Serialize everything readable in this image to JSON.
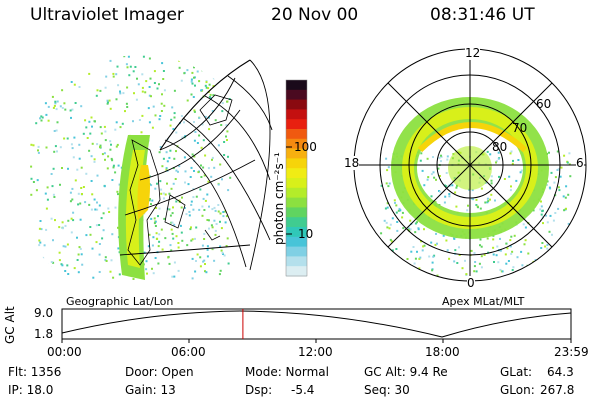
{
  "header": {
    "instrument": "Ultraviolet Imager",
    "date": "20 Nov 00",
    "time": "08:31:46 UT"
  },
  "colorbar": {
    "label": "photon cm⁻²s⁻¹",
    "tick_labels": [
      "100",
      "10"
    ],
    "colors": [
      "#1a0a1a",
      "#4a0a20",
      "#8a0a10",
      "#c41010",
      "#e82010",
      "#f05a10",
      "#f58a10",
      "#f7b010",
      "#f6d40a",
      "#f0ec14",
      "#d8f01a",
      "#b4ec2a",
      "#8ce040",
      "#60d460",
      "#40cc90",
      "#30c8b8",
      "#48c4d8",
      "#80d0e4",
      "#b4e0ec",
      "#dceef2"
    ]
  },
  "geographic_panel": {
    "label": "Geographic Lat/Lon"
  },
  "polar_panel": {
    "label": "Apex MLat/MLT",
    "mlt_labels": {
      "top": "12",
      "left": "18",
      "right": "6",
      "bottom": "0"
    },
    "lat_labels": [
      "60",
      "70",
      "80"
    ]
  },
  "altitude_plot": {
    "ylabel": "GC Alt",
    "y_ticks": [
      "9.0",
      "1.8"
    ],
    "x_ticks": [
      "00:00",
      "06:00",
      "12:00",
      "18:00",
      "23:59"
    ],
    "current_time_fraction": 0.3554,
    "marker_color": "#cc0000"
  },
  "status": {
    "flt": "Flt: 1356",
    "ip": "IP: 18.0",
    "door": "Door: Open",
    "gain": "Gain: 13",
    "mode": "Mode: Normal",
    "dsp": "Dsp:",
    "dsp_value": "-5.4",
    "gc_alt": "GC Alt: 9.4 Re",
    "seq": "Seq: 30",
    "glat": "GLat:",
    "glat_value": "64.3",
    "glon": "GLon:",
    "glon_value": "267.8"
  }
}
